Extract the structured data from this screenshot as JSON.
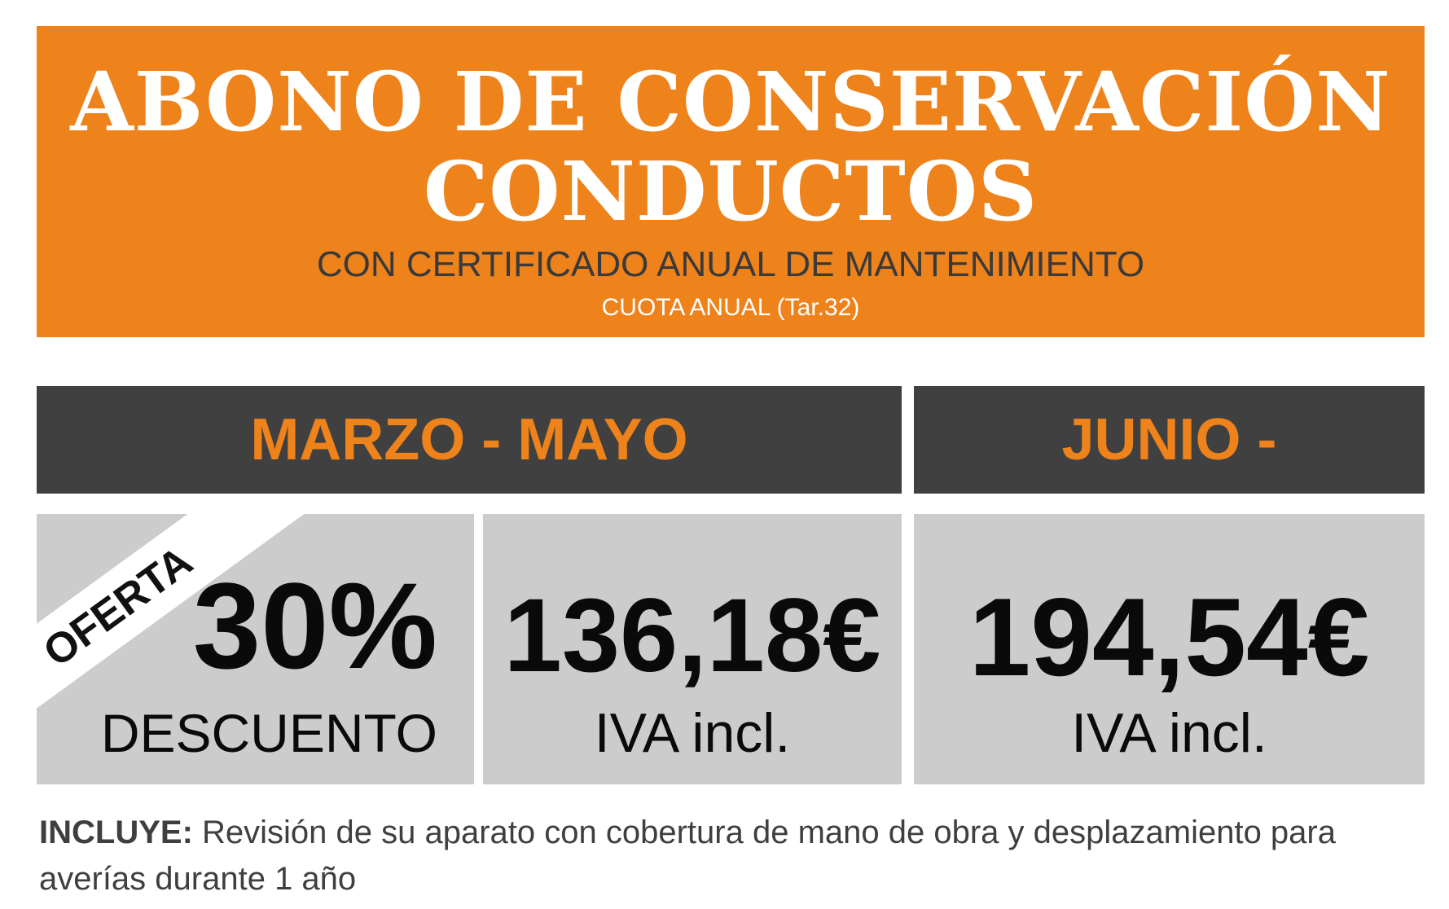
{
  "banner": {
    "title_line1": "ABONO DE CONSERVACIÓN",
    "title_line2": "CONDUCTOS",
    "subtitle": "CON CERTIFICADO ANUAL DE MANTENIMIENTO",
    "fee": "CUOTA ANUAL (Tar.32)"
  },
  "periods": {
    "first": "MARZO - MAYO",
    "second": "JUNIO - FEBRERO"
  },
  "offer": {
    "ribbon": "OFERTA",
    "percent": "30%",
    "label": "DESCUENTO"
  },
  "prices": {
    "first_price": "136,18€",
    "first_note": "IVA incl.",
    "second_price": "194,54€",
    "second_note": "IVA incl."
  },
  "footer": {
    "label": "INCLUYE:",
    "text": "Revisión de su aparato con cobertura de mano de obra y desplazamiento para averías durante 1 año"
  },
  "colors": {
    "accent": "#ee821b",
    "dark": "#404040",
    "cell_bg": "#cdcccc"
  }
}
